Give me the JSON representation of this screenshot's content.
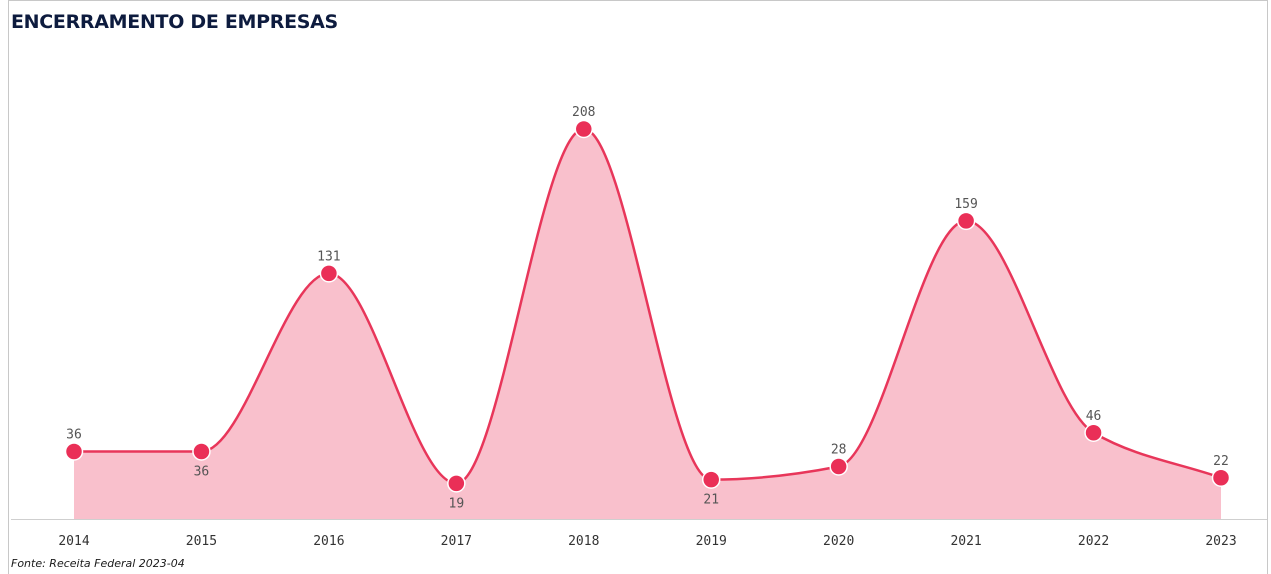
{
  "title": "ENCERRAMENTO DE EMPRESAS",
  "source": "Fonte: Receita Federal 2023-04",
  "colors": {
    "line": "#e8365a",
    "area": "#f9c0cc",
    "point": "#ea2f57",
    "axis": "#cfcfcf"
  },
  "chart_data": {
    "type": "area",
    "title": "ENCERRAMENTO DE EMPRESAS",
    "xlabel": "",
    "ylabel": "",
    "categories": [
      "2014",
      "2015",
      "2016",
      "2017",
      "2018",
      "2019",
      "2020",
      "2021",
      "2022",
      "2023"
    ],
    "series": [
      {
        "values": [
          36,
          36,
          131,
          19,
          208,
          21,
          28,
          159,
          46,
          22
        ]
      }
    ],
    "label_position": [
      "above",
      "below",
      "above",
      "below",
      "above",
      "below",
      "above",
      "above",
      "above",
      "above"
    ],
    "ylim": [
      0,
      208
    ],
    "smooth": true,
    "grid": false,
    "legend": "none"
  }
}
